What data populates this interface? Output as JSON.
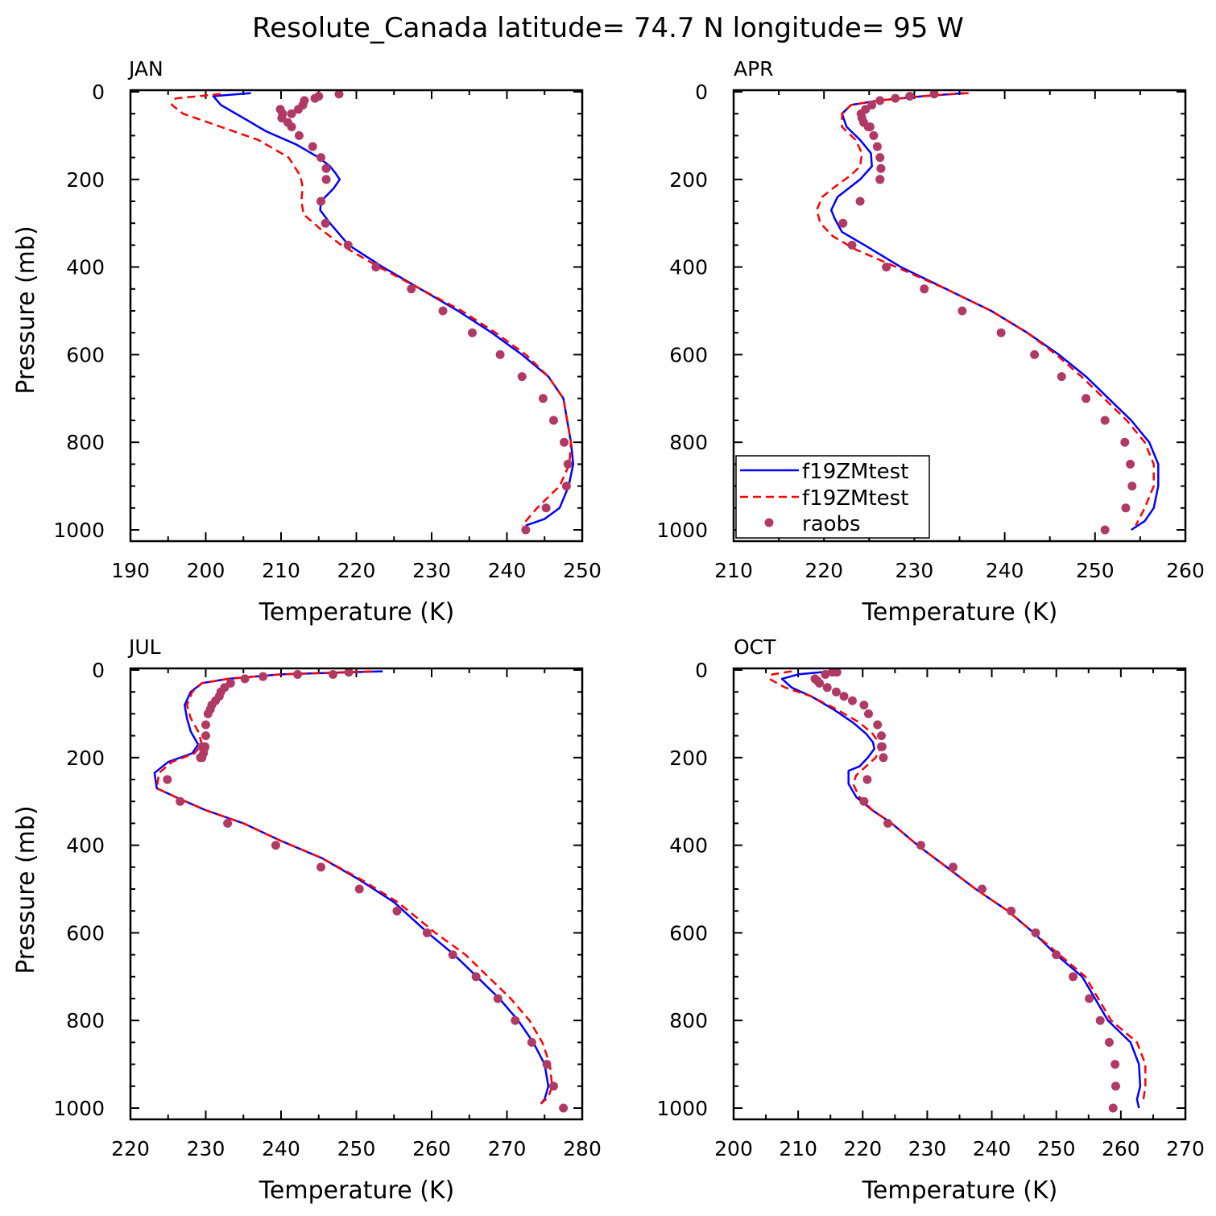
{
  "title": "Resolute_Canada  latitude= 74.7 N longitude= 95 W",
  "colors": {
    "model1": "#0000ff",
    "model2": "#ff0000",
    "obs": "#b03a64",
    "axis": "#000000"
  },
  "legend": {
    "entries": [
      {
        "label": "f19ZMtest",
        "style": "solid"
      },
      {
        "label": "f19ZMtest",
        "style": "dashed"
      },
      {
        "label": "raobs",
        "style": "marker"
      }
    ]
  },
  "chart_data": [
    {
      "type": "line",
      "title": "JAN",
      "xlabel": "Temperature (K)",
      "ylabel": "Pressure (mb)",
      "xlim": [
        190,
        250
      ],
      "ylim": [
        1000,
        0
      ],
      "xticks": [
        190,
        200,
        210,
        220,
        230,
        240,
        250
      ],
      "yticks": [
        0,
        200,
        400,
        600,
        800,
        1000
      ],
      "legend_position": "",
      "series": [
        {
          "name": "f19ZMtest",
          "style": "solid",
          "x": [
            206,
            201,
            202,
            205,
            208,
            212,
            215,
            216.5,
            217.2,
            217.8,
            217,
            215.3,
            215.2,
            216.5,
            219,
            223.5,
            228.5,
            233.5,
            238,
            242,
            245.5,
            247.5,
            248.5,
            248.8,
            248.2,
            247,
            245,
            242.5
          ],
          "y": [
            3,
            10,
            30,
            60,
            90,
            120,
            150,
            170,
            185,
            200,
            220,
            250,
            270,
            300,
            350,
            400,
            450,
            500,
            550,
            600,
            650,
            700,
            800,
            850,
            900,
            950,
            975,
            990
          ]
        },
        {
          "name": "f19ZMtest",
          "style": "dashed",
          "x": [
            202,
            196,
            195.5,
            197,
            202,
            207,
            211,
            212.5,
            212.8,
            212.8,
            212.7,
            213,
            215,
            218,
            223,
            228.5,
            234,
            238.5,
            242.5,
            245.5,
            247.5,
            248.5,
            248.3,
            247,
            244,
            242
          ],
          "y": [
            5,
            15,
            30,
            50,
            80,
            110,
            150,
            190,
            210,
            230,
            250,
            280,
            310,
            350,
            400,
            450,
            500,
            550,
            600,
            650,
            700,
            800,
            850,
            900,
            950,
            990
          ]
        },
        {
          "name": "raobs",
          "style": "marker",
          "x": [
            217.7,
            215,
            214.5,
            213.1,
            212.9,
            212.3,
            211.4,
            210.1,
            209.9,
            210.2,
            210.9,
            211.4,
            212.4,
            214.2,
            215.3,
            216,
            216,
            215.3,
            215.9,
            218.9,
            222.6,
            227.3,
            231.5,
            235.4,
            239.1,
            242,
            244.8,
            246.2,
            247.6,
            248.1,
            247.9,
            245.2,
            242.5
          ],
          "y": [
            5,
            10,
            15,
            20,
            30,
            40,
            50,
            60,
            40,
            50,
            70,
            80,
            100,
            125,
            150,
            175,
            200,
            250,
            300,
            350,
            400,
            450,
            500,
            550,
            600,
            650,
            700,
            750,
            800,
            850,
            900,
            950,
            1000
          ]
        }
      ]
    },
    {
      "type": "line",
      "title": "APR",
      "xlabel": "Temperature (K)",
      "ylabel": "",
      "xlim": [
        210,
        260
      ],
      "ylim": [
        1000,
        0
      ],
      "xticks": [
        210,
        220,
        230,
        240,
        250,
        260
      ],
      "yticks": [
        0,
        200,
        400,
        600,
        800,
        1000
      ],
      "legend_position": "bottom-left",
      "series": [
        {
          "name": "f19ZMtest",
          "style": "solid",
          "x": [
            235.5,
            231,
            226,
            223,
            222,
            222.5,
            224,
            225.2,
            225.3,
            224,
            221.5,
            220.8,
            221.2,
            222,
            224.5,
            228.5,
            233.5,
            238.5,
            242.5,
            246,
            249,
            251.5,
            254,
            256,
            257,
            257,
            256.5,
            255.5,
            254
          ],
          "y": [
            3,
            10,
            20,
            30,
            50,
            80,
            110,
            140,
            170,
            200,
            240,
            270,
            290,
            320,
            350,
            400,
            450,
            500,
            550,
            600,
            650,
            700,
            750,
            800,
            850,
            900,
            950,
            980,
            1000
          ]
        },
        {
          "name": "f19ZMtest",
          "style": "dashed",
          "x": [
            236,
            231,
            226,
            223,
            222,
            222,
            223.5,
            224.2,
            224,
            223,
            221,
            219.8,
            219.2,
            219.6,
            221,
            223.5,
            228,
            233.5,
            238.5,
            242.5,
            245.7,
            248.5,
            251,
            253.5,
            255.5,
            256.5,
            256.5,
            255.5,
            254.5
          ],
          "y": [
            3,
            10,
            20,
            30,
            50,
            80,
            110,
            140,
            170,
            190,
            220,
            240,
            270,
            300,
            330,
            360,
            400,
            450,
            500,
            550,
            600,
            650,
            700,
            750,
            800,
            850,
            900,
            950,
            990
          ]
        },
        {
          "name": "raobs",
          "style": "marker",
          "x": [
            232.2,
            229.5,
            227.9,
            226.2,
            225.3,
            224.6,
            224.1,
            224.2,
            224.4,
            224.9,
            225.1,
            225.5,
            225.9,
            226.2,
            226.3,
            226.2,
            226.2,
            224,
            222.1,
            223.1,
            226.9,
            231.1,
            235.3,
            239.6,
            243.3,
            246.3,
            249,
            251.1,
            253.3,
            253.9,
            254.1,
            253.4,
            251.1
          ],
          "y": [
            5,
            10,
            15,
            20,
            30,
            40,
            50,
            60,
            70,
            80,
            80,
            100,
            125,
            150,
            175,
            200,
            200,
            250,
            300,
            350,
            400,
            450,
            500,
            550,
            600,
            650,
            700,
            750,
            800,
            850,
            900,
            950,
            1000
          ]
        }
      ]
    },
    {
      "type": "line",
      "title": "JUL",
      "xlabel": "Temperature (K)",
      "ylabel": "Pressure (mb)",
      "xlim": [
        220,
        280
      ],
      "ylim": [
        1000,
        0
      ],
      "xticks": [
        220,
        230,
        240,
        250,
        260,
        270,
        280
      ],
      "yticks": [
        0,
        200,
        400,
        600,
        800,
        1000
      ],
      "legend_position": "",
      "series": [
        {
          "name": "f19ZMtest",
          "style": "solid",
          "x": [
            253.5,
            240,
            233,
            229.5,
            228,
            227.2,
            227.5,
            228,
            229,
            228.2,
            225,
            223.2,
            223.5,
            226,
            230,
            235,
            240,
            245.5,
            250.5,
            255,
            259.5,
            263,
            266,
            269,
            271.5,
            273.5,
            275,
            275.5,
            275,
            274.5
          ],
          "y": [
            3,
            10,
            20,
            30,
            50,
            80,
            110,
            140,
            170,
            190,
            210,
            235,
            270,
            290,
            320,
            350,
            390,
            430,
            480,
            530,
            600,
            650,
            700,
            750,
            800,
            850,
            900,
            950,
            980,
            990
          ]
        },
        {
          "name": "f19ZMtest",
          "style": "dashed",
          "x": [
            252,
            240,
            233,
            229.5,
            228.2,
            227.5,
            228,
            229,
            229.5,
            228.5,
            225.5,
            223.8,
            223.5,
            226,
            230,
            235,
            240,
            245.5,
            250.8,
            255.5,
            260.5,
            264.5,
            267.5,
            270.5,
            273,
            274.7,
            275.7,
            276,
            275.5,
            274.5
          ],
          "y": [
            3,
            10,
            20,
            30,
            50,
            80,
            110,
            140,
            170,
            190,
            210,
            235,
            270,
            290,
            320,
            350,
            390,
            430,
            480,
            530,
            600,
            650,
            700,
            750,
            800,
            850,
            900,
            950,
            975,
            990
          ]
        },
        {
          "name": "raobs",
          "style": "marker",
          "x": [
            249,
            246.9,
            242.2,
            237.6,
            235.2,
            233.3,
            232.5,
            232,
            231.8,
            231.3,
            230.8,
            230.6,
            230.3,
            230,
            230,
            229.9,
            229.8,
            229.7,
            229.5,
            229.5,
            229.3,
            224.9,
            226.6,
            232.9,
            239.3,
            245.3,
            250.4,
            255.4,
            259.4,
            262.8,
            265.9,
            268.8,
            271.1,
            273.3,
            275.3,
            276.2,
            277.5
          ],
          "y": [
            5,
            10,
            10,
            15,
            20,
            30,
            40,
            50,
            60,
            70,
            80,
            90,
            100,
            125,
            150,
            175,
            180,
            190,
            200,
            175,
            200,
            250,
            300,
            350,
            400,
            450,
            500,
            550,
            600,
            650,
            700,
            750,
            800,
            850,
            900,
            950,
            1000
          ]
        }
      ]
    },
    {
      "type": "line",
      "title": "OCT",
      "xlabel": "Temperature (K)",
      "ylabel": "",
      "xlim": [
        200,
        270
      ],
      "ylim": [
        1000,
        0
      ],
      "xticks": [
        200,
        210,
        220,
        230,
        240,
        250,
        260,
        270
      ],
      "yticks": [
        0,
        200,
        400,
        600,
        800,
        1000
      ],
      "legend_position": "",
      "series": [
        {
          "name": "f19ZMtest",
          "style": "solid",
          "x": [
            215,
            210,
            207.5,
            209,
            212,
            215.5,
            218.5,
            220.5,
            221.6,
            221.8,
            220.8,
            219.5,
            217.8,
            217.8,
            219,
            221.5,
            224.5,
            228.5,
            233,
            237.5,
            242.5,
            246.5,
            250,
            254,
            258,
            261.5,
            262.8,
            263,
            262.5,
            262.8
          ],
          "y": [
            3,
            10,
            20,
            40,
            60,
            90,
            120,
            145,
            165,
            180,
            200,
            220,
            230,
            260,
            290,
            320,
            350,
            400,
            450,
            500,
            550,
            600,
            650,
            700,
            800,
            850,
            900,
            950,
            980,
            1000
          ]
        },
        {
          "name": "f19ZMtest",
          "style": "dashed",
          "x": [
            209,
            206,
            205.5,
            208,
            212,
            216,
            219.5,
            221.5,
            222.5,
            222.7,
            222,
            220.5,
            219,
            218.5,
            219.5,
            221.5,
            224.5,
            228.5,
            233,
            237.5,
            242.5,
            246.5,
            250.5,
            254.5,
            258.5,
            262.5,
            263.8,
            263.8,
            263.5
          ],
          "y": [
            3,
            10,
            20,
            40,
            60,
            90,
            120,
            145,
            165,
            180,
            200,
            220,
            240,
            260,
            290,
            320,
            350,
            400,
            450,
            500,
            550,
            600,
            650,
            700,
            800,
            850,
            900,
            950,
            980
          ]
        },
        {
          "name": "raobs",
          "style": "marker",
          "x": [
            216,
            215.3,
            214.2,
            212.6,
            213,
            213.3,
            214.5,
            215.9,
            217.1,
            218.4,
            220.2,
            220.9,
            222.3,
            222.9,
            222.9,
            223.2,
            223,
            220.7,
            220.2,
            223.9,
            229,
            234,
            238.5,
            243,
            246.8,
            250,
            252.6,
            255.1,
            256.8,
            258.2,
            259.1,
            259.2,
            258.8
          ],
          "y": [
            5,
            5,
            10,
            20,
            25,
            30,
            40,
            50,
            60,
            70,
            80,
            100,
            125,
            150,
            175,
            200,
            175,
            250,
            300,
            350,
            400,
            450,
            500,
            550,
            600,
            650,
            700,
            750,
            800,
            850,
            900,
            950,
            1000
          ]
        }
      ]
    }
  ]
}
